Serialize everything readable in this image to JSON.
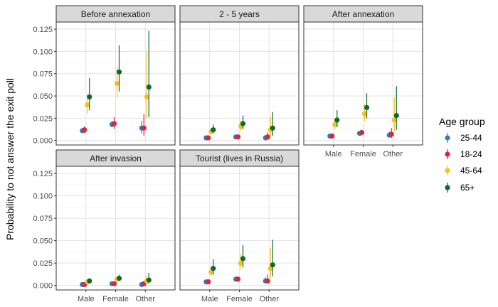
{
  "chart_data": {
    "type": "pointrange",
    "ylabel": "Probability to not answer the exit poll",
    "xlabel": "",
    "categories": [
      "Male",
      "Female",
      "Other"
    ],
    "yticks": [
      "0.000",
      "0.025",
      "0.050",
      "0.075",
      "0.100",
      "0.125"
    ],
    "ylim": [
      -0.005,
      0.133
    ],
    "grid": true,
    "legend": {
      "title": "Age group",
      "placement": "right",
      "entries": [
        {
          "name": "25-44",
          "color": "#2a7fc1"
        },
        {
          "name": "18-24",
          "color": "#d7263d"
        },
        {
          "name": "45-64",
          "color": "#f5c21b"
        },
        {
          "name": "65+",
          "color": "#0b6b2e"
        }
      ]
    },
    "panels": [
      {
        "title": "Before annexation",
        "series": {
          "25-44": [
            {
              "y": 0.011,
              "lo": 0.009,
              "hi": 0.014
            },
            {
              "y": 0.018,
              "lo": 0.015,
              "hi": 0.022
            },
            {
              "y": 0.014,
              "lo": 0.008,
              "hi": 0.022
            }
          ],
          "18-24": [
            {
              "y": 0.012,
              "lo": 0.008,
              "hi": 0.016
            },
            {
              "y": 0.019,
              "lo": 0.013,
              "hi": 0.026
            },
            {
              "y": 0.014,
              "lo": 0.005,
              "hi": 0.03
            }
          ],
          "45-64": [
            {
              "y": 0.04,
              "lo": 0.03,
              "hi": 0.052
            },
            {
              "y": 0.064,
              "lo": 0.048,
              "hi": 0.083
            },
            {
              "y": 0.049,
              "lo": 0.025,
              "hi": 0.1
            }
          ],
          "65+": [
            {
              "y": 0.049,
              "lo": 0.034,
              "hi": 0.07
            },
            {
              "y": 0.077,
              "lo": 0.055,
              "hi": 0.107
            },
            {
              "y": 0.06,
              "lo": 0.026,
              "hi": 0.123
            }
          ]
        }
      },
      {
        "title": "2 - 5 years",
        "series": {
          "25-44": [
            {
              "y": 0.003,
              "lo": 0.002,
              "hi": 0.004
            },
            {
              "y": 0.004,
              "lo": 0.003,
              "hi": 0.006
            },
            {
              "y": 0.003,
              "lo": 0.002,
              "hi": 0.006
            }
          ],
          "18-24": [
            {
              "y": 0.003,
              "lo": 0.002,
              "hi": 0.005
            },
            {
              "y": 0.004,
              "lo": 0.003,
              "hi": 0.007
            },
            {
              "y": 0.004,
              "lo": 0.002,
              "hi": 0.009
            }
          ],
          "45-64": [
            {
              "y": 0.01,
              "lo": 0.007,
              "hi": 0.014
            },
            {
              "y": 0.016,
              "lo": 0.011,
              "hi": 0.022
            },
            {
              "y": 0.012,
              "lo": 0.005,
              "hi": 0.027
            }
          ],
          "65+": [
            {
              "y": 0.012,
              "lo": 0.008,
              "hi": 0.018
            },
            {
              "y": 0.019,
              "lo": 0.013,
              "hi": 0.028
            },
            {
              "y": 0.014,
              "lo": 0.005,
              "hi": 0.032
            }
          ]
        }
      },
      {
        "title": "After annexation",
        "series": {
          "25-44": [
            {
              "y": 0.005,
              "lo": 0.004,
              "hi": 0.007
            },
            {
              "y": 0.008,
              "lo": 0.006,
              "hi": 0.01
            },
            {
              "y": 0.006,
              "lo": 0.004,
              "hi": 0.01
            }
          ],
          "18-24": [
            {
              "y": 0.005,
              "lo": 0.004,
              "hi": 0.008
            },
            {
              "y": 0.009,
              "lo": 0.006,
              "hi": 0.012
            },
            {
              "y": 0.007,
              "lo": 0.003,
              "hi": 0.014
            }
          ],
          "45-64": [
            {
              "y": 0.018,
              "lo": 0.013,
              "hi": 0.025
            },
            {
              "y": 0.03,
              "lo": 0.022,
              "hi": 0.041
            },
            {
              "y": 0.023,
              "lo": 0.01,
              "hi": 0.048
            }
          ],
          "65+": [
            {
              "y": 0.023,
              "lo": 0.015,
              "hi": 0.034
            },
            {
              "y": 0.037,
              "lo": 0.025,
              "hi": 0.053
            },
            {
              "y": 0.028,
              "lo": 0.012,
              "hi": 0.061
            }
          ]
        }
      },
      {
        "title": "After invasion",
        "series": {
          "25-44": [
            {
              "y": 0.001,
              "lo": 0.0005,
              "hi": 0.002
            },
            {
              "y": 0.002,
              "lo": 0.001,
              "hi": 0.003
            },
            {
              "y": 0.001,
              "lo": 0.0005,
              "hi": 0.003
            }
          ],
          "18-24": [
            {
              "y": 0.001,
              "lo": 0.0005,
              "hi": 0.002
            },
            {
              "y": 0.002,
              "lo": 0.001,
              "hi": 0.003
            },
            {
              "y": 0.002,
              "lo": 0.0005,
              "hi": 0.004
            }
          ],
          "45-64": [
            {
              "y": 0.004,
              "lo": 0.003,
              "hi": 0.006
            },
            {
              "y": 0.007,
              "lo": 0.005,
              "hi": 0.01
            },
            {
              "y": 0.005,
              "lo": 0.002,
              "hi": 0.011
            }
          ],
          "65+": [
            {
              "y": 0.005,
              "lo": 0.003,
              "hi": 0.008
            },
            {
              "y": 0.008,
              "lo": 0.005,
              "hi": 0.012
            },
            {
              "y": 0.006,
              "lo": 0.002,
              "hi": 0.014
            }
          ]
        }
      },
      {
        "title": "Tourist (lives in Russia)",
        "series": {
          "25-44": [
            {
              "y": 0.004,
              "lo": 0.003,
              "hi": 0.006
            },
            {
              "y": 0.007,
              "lo": 0.005,
              "hi": 0.009
            },
            {
              "y": 0.005,
              "lo": 0.003,
              "hi": 0.009
            }
          ],
          "18-24": [
            {
              "y": 0.004,
              "lo": 0.003,
              "hi": 0.007
            },
            {
              "y": 0.007,
              "lo": 0.005,
              "hi": 0.01
            },
            {
              "y": 0.005,
              "lo": 0.002,
              "hi": 0.012
            }
          ],
          "45-64": [
            {
              "y": 0.015,
              "lo": 0.011,
              "hi": 0.021
            },
            {
              "y": 0.025,
              "lo": 0.018,
              "hi": 0.035
            },
            {
              "y": 0.019,
              "lo": 0.008,
              "hi": 0.042
            }
          ],
          "65+": [
            {
              "y": 0.019,
              "lo": 0.012,
              "hi": 0.029
            },
            {
              "y": 0.03,
              "lo": 0.02,
              "hi": 0.045
            },
            {
              "y": 0.023,
              "lo": 0.01,
              "hi": 0.051
            }
          ]
        }
      }
    ]
  }
}
